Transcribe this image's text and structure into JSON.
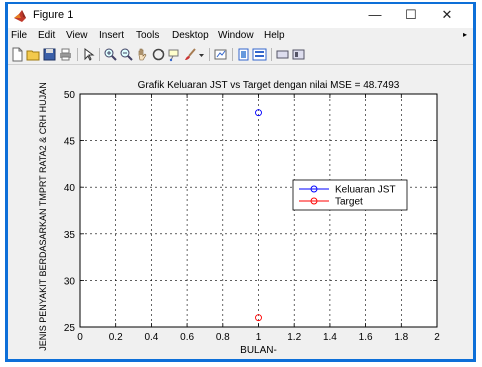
{
  "window": {
    "title": "Figure 1",
    "minimize_glyph": "—",
    "maximize_glyph": "☐",
    "close_glyph": "✕"
  },
  "menu": {
    "items": [
      "File",
      "Edit",
      "View",
      "Insert",
      "Tools",
      "Desktop",
      "Window",
      "Help"
    ]
  },
  "toolbar": {
    "buttons": [
      "new-figure-icon",
      "open-file-icon",
      "save-icon",
      "print-icon",
      "edit-plot-icon",
      "zoom-in-icon",
      "zoom-out-icon",
      "pan-icon",
      "rotate-3d-icon",
      "data-cursor-icon",
      "brush-icon",
      "link-plot-icon",
      "colorbar-icon",
      "legend-icon",
      "hide-plot-tools-icon",
      "show-plot-tools-icon"
    ]
  },
  "chart_data": {
    "type": "scatter",
    "title": "Grafik Keluaran JST vs Target dengan nilai MSE = 48.7493",
    "xlabel": "BULAN-",
    "ylabel": "JENIS PENYAKIT BERDASARKAN TMPRT RATA2 & CRH HUJAN",
    "xlim": [
      0,
      2
    ],
    "ylim": [
      25,
      50
    ],
    "xticks": [
      "0",
      "0.2",
      "0.4",
      "0.6",
      "0.8",
      "1",
      "1.2",
      "1.4",
      "1.6",
      "1.8",
      "2"
    ],
    "yticks": [
      "25",
      "30",
      "35",
      "40",
      "45",
      "50"
    ],
    "grid": true,
    "legend_position": "right",
    "series": [
      {
        "name": "Keluaran JST",
        "color": "#0000ff",
        "marker": "circle",
        "x": [
          1
        ],
        "y": [
          48
        ]
      },
      {
        "name": "Target",
        "color": "#ff0000",
        "marker": "circle",
        "x": [
          1
        ],
        "y": [
          26
        ]
      }
    ]
  }
}
